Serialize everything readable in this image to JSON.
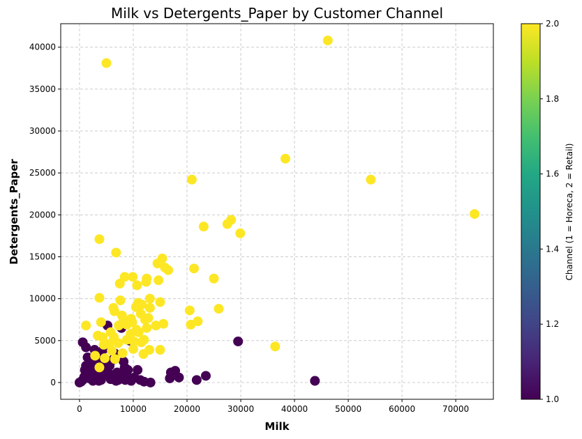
{
  "chart_data": {
    "type": "scatter",
    "title": "Milk vs Detergents_Paper by Customer Channel",
    "xlabel": "Milk",
    "ylabel": "Detergents_Paper",
    "xlim": [
      -3500,
      77000
    ],
    "ylim": [
      -2000,
      42800
    ],
    "xticks": [
      0,
      10000,
      20000,
      30000,
      40000,
      50000,
      60000,
      70000
    ],
    "yticks": [
      0,
      5000,
      10000,
      15000,
      20000,
      25000,
      30000,
      35000,
      40000
    ],
    "grid": true,
    "colorbar": {
      "label": "Channel (1 = Horeca, 2 = Retail)",
      "range": [
        1.0,
        2.0
      ],
      "ticks": [
        1.0,
        1.2,
        1.4,
        1.6,
        1.8,
        2.0
      ],
      "colormap": "viridis"
    },
    "colors": {
      "horeca": "#440154",
      "retail": "#fde725"
    },
    "series": [
      {
        "channel": 1,
        "points": [
          [
            0,
            0
          ],
          [
            300,
            100
          ],
          [
            600,
            300
          ],
          [
            900,
            700
          ],
          [
            1200,
            1200
          ],
          [
            1500,
            1800
          ],
          [
            600,
            4800
          ],
          [
            1200,
            4200
          ],
          [
            1500,
            3000
          ],
          [
            2000,
            2500
          ],
          [
            2300,
            2000
          ],
          [
            2600,
            1400
          ],
          [
            3000,
            900
          ],
          [
            3300,
            500
          ],
          [
            3600,
            200
          ],
          [
            4000,
            300
          ],
          [
            4400,
            800
          ],
          [
            4800,
            1300
          ],
          [
            5200,
            1700
          ],
          [
            5600,
            2000
          ],
          [
            6000,
            900
          ],
          [
            6400,
            500
          ],
          [
            6800,
            200
          ],
          [
            7200,
            300
          ],
          [
            7600,
            700
          ],
          [
            8000,
            1100
          ],
          [
            8400,
            1800
          ],
          [
            8800,
            800
          ],
          [
            9200,
            400
          ],
          [
            9600,
            200
          ],
          [
            10200,
            600
          ],
          [
            10800,
            1500
          ],
          [
            11300,
            300
          ],
          [
            12000,
            100
          ],
          [
            13200,
            0
          ],
          [
            16800,
            500
          ],
          [
            17000,
            1200
          ],
          [
            17800,
            1400
          ],
          [
            18500,
            600
          ],
          [
            21800,
            300
          ],
          [
            23500,
            800
          ],
          [
            29500,
            4900
          ],
          [
            43800,
            200
          ],
          [
            5200,
            6800
          ],
          [
            9300,
            5000
          ],
          [
            7800,
            6500
          ],
          [
            3800,
            2300
          ],
          [
            2800,
            3900
          ],
          [
            1800,
            500
          ],
          [
            2200,
            1000
          ],
          [
            4200,
            1500
          ],
          [
            6200,
            2700
          ],
          [
            8200,
            2500
          ],
          [
            5800,
            400
          ],
          [
            1000,
            1500
          ],
          [
            3500,
            3500
          ],
          [
            4500,
            4000
          ],
          [
            6500,
            3500
          ],
          [
            7000,
            1200
          ],
          [
            8500,
            300
          ],
          [
            9000,
            1500
          ],
          [
            2500,
            200
          ],
          [
            1200,
            2000
          ],
          [
            3200,
            2800
          ],
          [
            5000,
            2300
          ]
        ]
      },
      {
        "channel": 2,
        "points": [
          [
            5000,
            38100
          ],
          [
            46200,
            40800
          ],
          [
            38300,
            26700
          ],
          [
            20900,
            24200
          ],
          [
            54200,
            24200
          ],
          [
            73500,
            20100
          ],
          [
            28200,
            19400
          ],
          [
            27500,
            18900
          ],
          [
            23100,
            18600
          ],
          [
            29900,
            17800
          ],
          [
            3700,
            17100
          ],
          [
            6800,
            15500
          ],
          [
            15400,
            14800
          ],
          [
            14500,
            14200
          ],
          [
            15900,
            13700
          ],
          [
            16500,
            13400
          ],
          [
            21300,
            13600
          ],
          [
            8400,
            12600
          ],
          [
            9900,
            12600
          ],
          [
            12500,
            12400
          ],
          [
            12400,
            12000
          ],
          [
            14700,
            12200
          ],
          [
            7500,
            11800
          ],
          [
            10700,
            11600
          ],
          [
            25000,
            12400
          ],
          [
            3700,
            10100
          ],
          [
            7600,
            9800
          ],
          [
            10900,
            9500
          ],
          [
            11600,
            9300
          ],
          [
            13100,
            10000
          ],
          [
            13100,
            8900
          ],
          [
            15000,
            9600
          ],
          [
            6300,
            8900
          ],
          [
            6500,
            8500
          ],
          [
            7900,
            8000
          ],
          [
            8200,
            7500
          ],
          [
            9600,
            7600
          ],
          [
            10500,
            9000
          ],
          [
            11400,
            8200
          ],
          [
            12800,
            7700
          ],
          [
            20500,
            8600
          ],
          [
            25900,
            8800
          ],
          [
            1200,
            6800
          ],
          [
            4000,
            7200
          ],
          [
            5800,
            6000
          ],
          [
            7300,
            6800
          ],
          [
            8800,
            6900
          ],
          [
            10600,
            6300
          ],
          [
            12200,
            7500
          ],
          [
            14200,
            6800
          ],
          [
            15600,
            7000
          ],
          [
            20700,
            6900
          ],
          [
            22000,
            7300
          ],
          [
            4300,
            5400
          ],
          [
            5500,
            4600
          ],
          [
            6400,
            5400
          ],
          [
            8800,
            5100
          ],
          [
            10100,
            4900
          ],
          [
            11500,
            4800
          ],
          [
            12000,
            5100
          ],
          [
            13000,
            3900
          ],
          [
            15000,
            3900
          ],
          [
            11900,
            3400
          ],
          [
            3400,
            5600
          ],
          [
            2900,
            3200
          ],
          [
            4700,
            2900
          ],
          [
            6600,
            2800
          ],
          [
            3700,
            1800
          ],
          [
            36400,
            4300
          ],
          [
            7200,
            4700
          ],
          [
            9500,
            5800
          ],
          [
            11000,
            6000
          ],
          [
            4500,
            4500
          ],
          [
            6000,
            3800
          ],
          [
            8000,
            3500
          ],
          [
            10000,
            4000
          ],
          [
            9800,
            7200
          ],
          [
            12500,
            6500
          ]
        ]
      }
    ]
  }
}
